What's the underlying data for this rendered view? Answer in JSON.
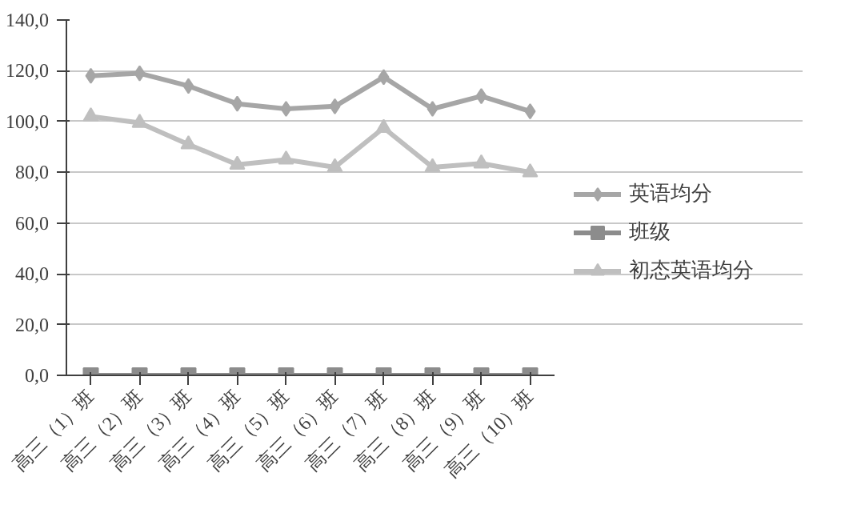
{
  "chart_data": {
    "type": "line",
    "categories": [
      "高三（1）班",
      "高三（2）班",
      "高三（3）班",
      "高三（4）班",
      "高三（5）班",
      "高三（6）班",
      "高三（7）班",
      "高三（8）班",
      "高三（9）班",
      "高三（10）班"
    ],
    "series": [
      {
        "name": "英语均分",
        "color": "#a6a6a6",
        "marker": "diamond",
        "values": [
          118,
          119,
          114,
          107,
          105,
          106,
          117.5,
          105,
          110,
          104
        ]
      },
      {
        "name": "班级",
        "color": "#8c8c8c",
        "marker": "square",
        "values": [
          0,
          0,
          0,
          0,
          0,
          0,
          0,
          0,
          0,
          0
        ]
      },
      {
        "name": "初态英语均分",
        "color": "#bfbfbf",
        "marker": "triangle",
        "values": [
          102,
          99.5,
          91,
          83,
          85,
          82,
          97.5,
          82,
          83.5,
          80
        ]
      }
    ],
    "ylim": [
      0,
      140
    ],
    "yticks": [
      {
        "value": 0,
        "label": "0,0"
      },
      {
        "value": 20,
        "label": "20,0"
      },
      {
        "value": 40,
        "label": "40,0"
      },
      {
        "value": 60,
        "label": "60,0"
      },
      {
        "value": 80,
        "label": "80,0"
      },
      {
        "value": 100,
        "label": "100,0"
      },
      {
        "value": 120,
        "label": "120,0"
      },
      {
        "value": 140,
        "label": "140,0"
      }
    ],
    "grid": "y",
    "legend": "right",
    "line_style": "solid"
  }
}
